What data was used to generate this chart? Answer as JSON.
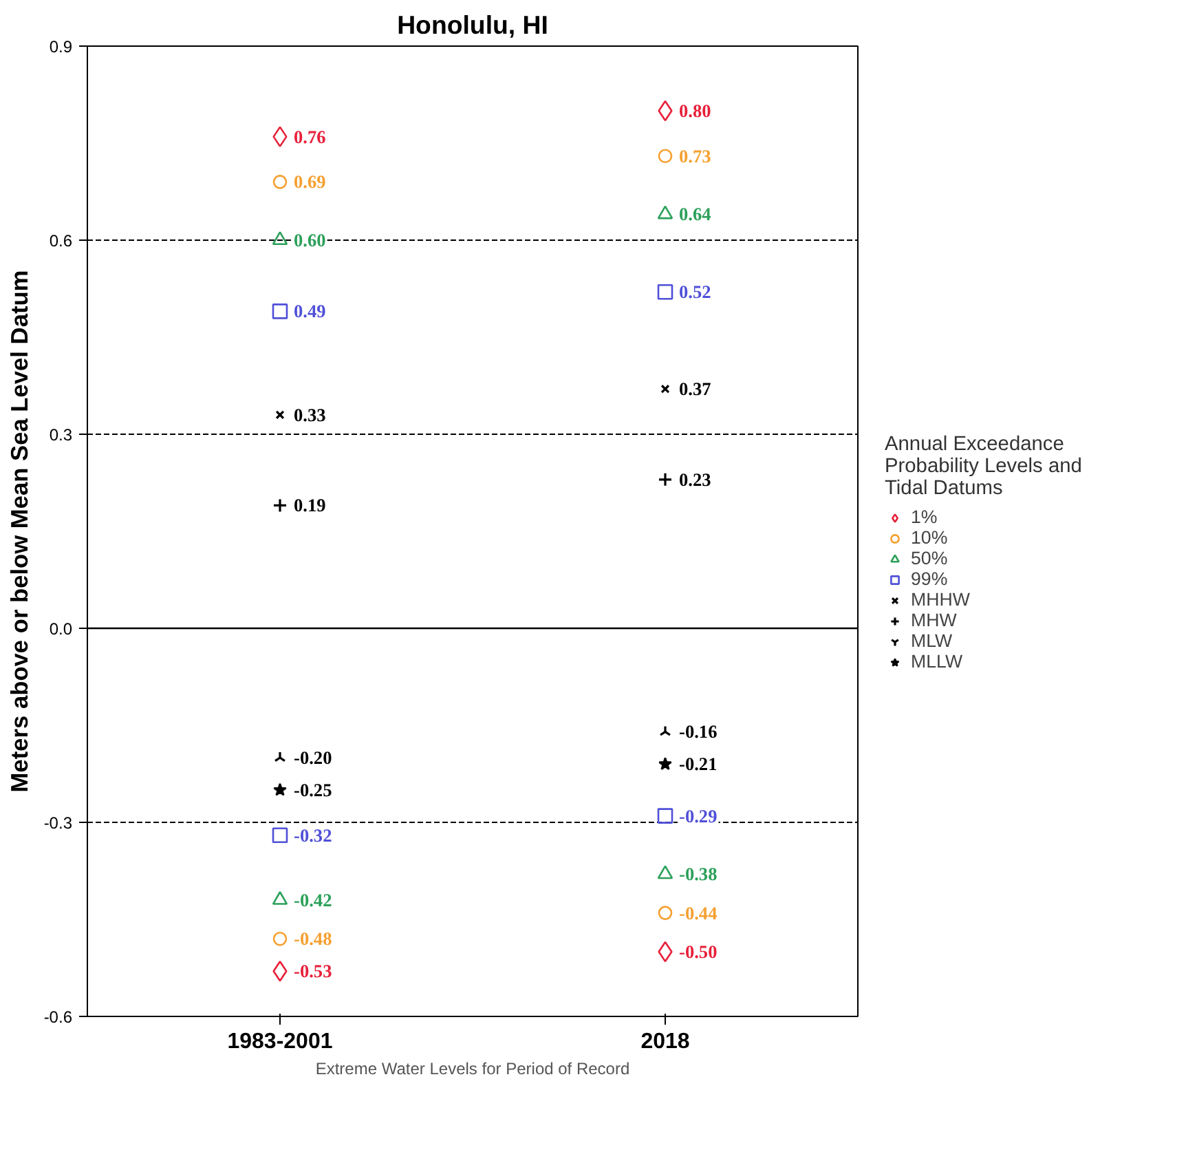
{
  "chart_data": {
    "type": "scatter",
    "title": "Honolulu, HI",
    "xlabel": "Extreme Water Levels for Period of Record",
    "ylabel": "Meters above or below Mean Sea Level Datum",
    "legend_title": "Annual Exceedance\nProbability Levels and\nTidal Datums",
    "categories": [
      "1983-2001",
      "2018"
    ],
    "series": [
      {
        "name": "1%",
        "color": "#e8203a",
        "marker": "diamond",
        "values": [
          0.76,
          0.8
        ],
        "value_labels": [
          "0.76",
          "0.80"
        ]
      },
      {
        "name": "10%",
        "color": "#f5a030",
        "marker": "circle",
        "values": [
          0.69,
          0.73
        ],
        "value_labels": [
          "0.69",
          "0.73"
        ]
      },
      {
        "name": "50%",
        "color": "#2ca05a",
        "marker": "triangle",
        "values": [
          0.6,
          0.64
        ],
        "value_labels": [
          "0.60",
          "0.64"
        ]
      },
      {
        "name": "99%",
        "color": "#5050d8",
        "marker": "square",
        "values": [
          0.49,
          0.52
        ],
        "value_labels": [
          "0.49",
          "0.52"
        ]
      },
      {
        "name": "MHHW",
        "color": "#000000",
        "marker": "x",
        "values": [
          0.33,
          0.37
        ],
        "value_labels": [
          "0.33",
          "0.37"
        ]
      },
      {
        "name": "MHW",
        "color": "#000000",
        "marker": "cross",
        "values": [
          0.19,
          0.23
        ],
        "value_labels": [
          "0.19",
          "0.23"
        ]
      },
      {
        "name": "MLW",
        "color": "#000000",
        "values": [
          -0.2,
          -0.16
        ],
        "value_labels": [
          "-0.20",
          "-0.16"
        ]
      },
      {
        "name": "MLLW",
        "color": "#000000",
        "marker": "star",
        "values": [
          -0.25,
          -0.21
        ],
        "value_labels": [
          "-0.25",
          "-0.21"
        ]
      },
      {
        "color": "#5050d8",
        "marker": "square",
        "values": [
          -0.32,
          -0.29
        ],
        "value_labels": [
          "-0.32",
          "-0.29"
        ]
      },
      {
        "color": "#2ca05a",
        "marker": "triangle",
        "values": [
          -0.42,
          -0.38
        ],
        "value_labels": [
          "-0.42",
          "-0.38"
        ]
      },
      {
        "color": "#f5a030",
        "marker": "circle",
        "values": [
          -0.48,
          -0.44
        ],
        "value_labels": [
          "-0.48",
          "-0.44"
        ]
      },
      {
        "color": "#e8203a",
        "marker": "diamond",
        "values": [
          -0.53,
          -0.5
        ],
        "value_labels": [
          "-0.53",
          "-0.50"
        ]
      }
    ],
    "ylim": [
      -0.6,
      0.9
    ],
    "yticks": [
      {
        "value": -0.6,
        "label": "-0.6"
      },
      {
        "value": -0.3,
        "label": "-0.3"
      },
      {
        "value": 0,
        "label": "0.0"
      },
      {
        "value": 0.3,
        "label": "0.3"
      },
      {
        "value": 0.6,
        "label": "0.6"
      },
      0.9
    ],
    "ref_lines": [
      {
        "axis": "y",
        "value": 0.6,
        "line_style": "dashed",
        "color": "#000000"
      },
      {
        "axis": "y",
        "value": 0.3,
        "line_style": "dashed",
        "color": "#000000"
      },
      {
        "axis": "y",
        "value": 0,
        "line_style": "solid",
        "color": "#000000"
      },
      {
        "axis": "y",
        "value": -0.3,
        "line_style": "dashed",
        "color": "#000000"
      }
    ],
    "grid": false,
    "legend": "right"
  }
}
